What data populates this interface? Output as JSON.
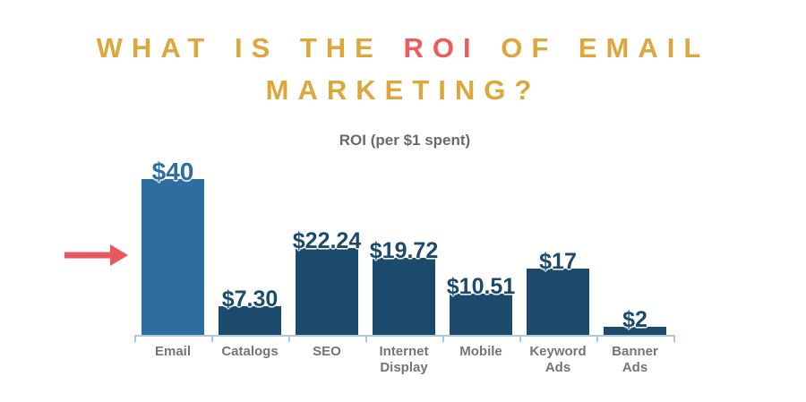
{
  "title": {
    "line1_pre": "WHAT IS THE ",
    "line1_accent": "ROI",
    "line1_post": " OF EMAIL",
    "line2": "MARKETING?"
  },
  "chart_data": {
    "type": "bar",
    "title": "ROI (per $1 spent)",
    "categories": [
      "Email",
      "Catalogs",
      "SEO",
      "Internet Display",
      "Mobile",
      "Keyword Ads",
      "Banner Ads"
    ],
    "tick_labels": [
      "Email",
      "Catalogs",
      "SEO",
      "Internet\nDisplay",
      "Mobile",
      "Keyword\nAds",
      "Banner\nAds"
    ],
    "values": [
      40,
      7.3,
      22.24,
      19.72,
      10.51,
      17,
      2
    ],
    "value_labels": [
      "$40",
      "$7.30",
      "$22.24",
      "$19.72",
      "$10.51",
      "$17",
      "$2"
    ],
    "xlabel": "",
    "ylabel": "",
    "ylim": [
      0,
      46
    ],
    "grid": false,
    "legend": false,
    "y_axis_shown": false,
    "highlighted_category": "Email"
  },
  "annotation": {
    "type": "arrow-right",
    "points_at": "Email"
  },
  "colors": {
    "title_gold": "#dca73c",
    "title_accent_red": "#ed5c5c",
    "arrow_red": "#e9585c",
    "bar_navy": "#1b4a6c",
    "bar_highlight_blue": "#2d6da0",
    "axis_light_blue": "#abc9dd",
    "chart_title_gray": "#6a6a6a",
    "tick_label_gray": "#757575",
    "background": "#ffffff"
  }
}
